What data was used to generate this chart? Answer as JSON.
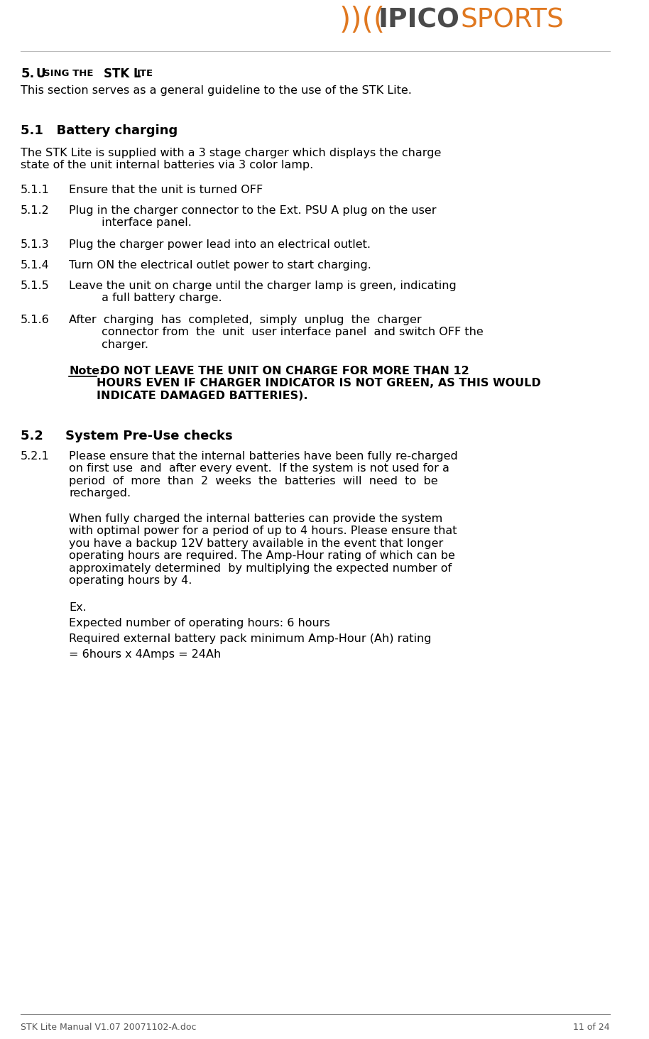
{
  "bg_color": "#ffffff",
  "text_color": "#000000",
  "footer_color": "#555555",
  "orange_color": "#E07820",
  "dark_gray": "#4a4a4a",
  "footer_left": "STK Lite Manual V1.07 20071102-A.doc",
  "footer_right": "11 of 24",
  "intro": "This section serves as a general guideline to the use of the STK Lite.",
  "section_51": "5.1   Battery charging",
  "para_51": "The STK Lite is supplied with a 3 stage charger which displays the charge\nstate of the unit internal batteries via 3 color lamp.",
  "section_52": "5.2     System Pre-Use checks",
  "ex_label": "Ex.",
  "ex_line1": "Expected number of operating hours: 6 hours",
  "ex_line2": "Required external battery pack minimum Amp-Hour (Ah) rating",
  "ex_line3": "= 6hours x 4Amps = 24Ah"
}
